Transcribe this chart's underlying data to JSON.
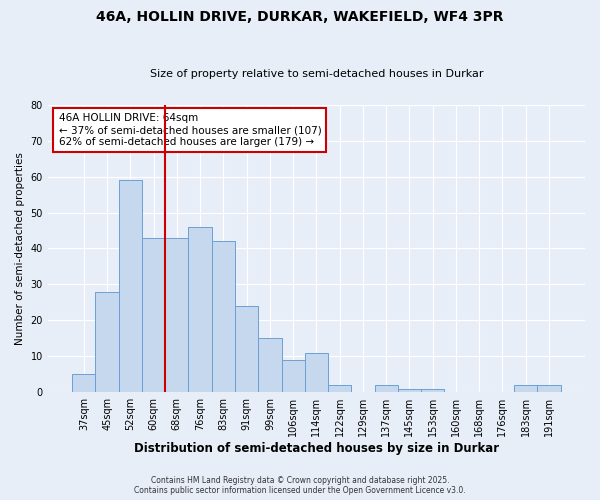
{
  "title": "46A, HOLLIN DRIVE, DURKAR, WAKEFIELD, WF4 3PR",
  "subtitle": "Size of property relative to semi-detached houses in Durkar",
  "xlabel": "Distribution of semi-detached houses by size in Durkar",
  "ylabel": "Number of semi-detached properties",
  "categories": [
    "37sqm",
    "45sqm",
    "52sqm",
    "60sqm",
    "68sqm",
    "76sqm",
    "83sqm",
    "91sqm",
    "99sqm",
    "106sqm",
    "114sqm",
    "122sqm",
    "129sqm",
    "137sqm",
    "145sqm",
    "153sqm",
    "160sqm",
    "168sqm",
    "176sqm",
    "183sqm",
    "191sqm"
  ],
  "bar_values": [
    5,
    28,
    59,
    43,
    43,
    46,
    42,
    24,
    15,
    9,
    11,
    2,
    0,
    2,
    1,
    1,
    0,
    0,
    0,
    2,
    2
  ],
  "bar_color": "#c5d8ee",
  "bar_edge_color": "#6b9fd4",
  "vline_color": "#cc0000",
  "annotation_text": "46A HOLLIN DRIVE: 64sqm\n← 37% of semi-detached houses are smaller (107)\n62% of semi-detached houses are larger (179) →",
  "annotation_box_color": "#ffffff",
  "annotation_box_edge": "#cc0000",
  "ylim": [
    0,
    80
  ],
  "yticks": [
    0,
    10,
    20,
    30,
    40,
    50,
    60,
    70,
    80
  ],
  "background_color": "#e8eef8",
  "grid_color": "#ffffff",
  "footer_line1": "Contains HM Land Registry data © Crown copyright and database right 2025.",
  "footer_line2": "Contains public sector information licensed under the Open Government Licence v3.0."
}
